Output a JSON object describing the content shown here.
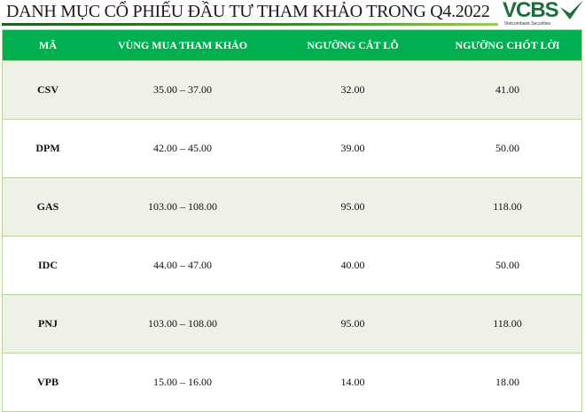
{
  "title": "DANH MỤC CỔ PHIẾU ĐẦU TƯ THAM KHẢO TRONG Q4.2022",
  "logo": {
    "text": "VCBS",
    "subtitle": "Vietcombank Securities",
    "color": "#1e6e3a"
  },
  "header_color": "#00b050",
  "columns": [
    "MÃ",
    "VÙNG MUA THAM KHẢO",
    "NGƯỠNG CẮT LỖ",
    "NGƯỠNG CHỐT LỜI"
  ],
  "rows": [
    [
      "CSV",
      "35.00 – 37.00",
      "32.00",
      "41.00"
    ],
    [
      "DPM",
      "42.00 – 45.00",
      "39.00",
      "50.00"
    ],
    [
      "GAS",
      "103.00 – 108.00",
      "95.00",
      "118.00"
    ],
    [
      "IDC",
      "44.00 – 47.00",
      "40.00",
      "50.00"
    ],
    [
      "PNJ",
      "103.00 – 108.00",
      "95.00",
      "118.00"
    ],
    [
      "VPB",
      "15.00 – 16.00",
      "14.00",
      "18.00"
    ]
  ]
}
